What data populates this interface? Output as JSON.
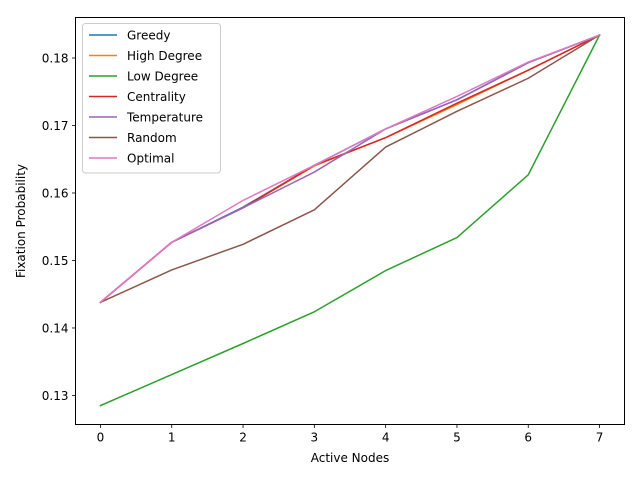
{
  "chart_data": {
    "type": "line",
    "title": "",
    "xlabel": "Active Nodes",
    "ylabel": "Fixation Probability",
    "x": [
      0,
      1,
      2,
      3,
      4,
      5,
      6,
      7
    ],
    "xlim": [
      -0.35,
      7.35
    ],
    "ylim": [
      0.1257,
      0.186
    ],
    "xticks": [
      "0",
      "1",
      "2",
      "3",
      "4",
      "5",
      "6",
      "7"
    ],
    "yticks": [
      0.13,
      0.14,
      0.15,
      0.16,
      0.17,
      0.18
    ],
    "ytick_labels": [
      "0.13",
      "0.14",
      "0.15",
      "0.16",
      "0.17",
      "0.18"
    ],
    "grid": false,
    "legend_position": "top-left",
    "series": [
      {
        "name": "Greedy",
        "color": "#1f77b4",
        "values": [
          0.1438,
          0.1527,
          0.1579,
          0.1641,
          0.1695,
          0.1738,
          0.1793,
          0.1834
        ]
      },
      {
        "name": "High Degree",
        "color": "#ff7f0e",
        "values": [
          0.1438,
          0.1527,
          0.1578,
          0.164,
          0.1682,
          0.1731,
          0.1782,
          0.1834
        ]
      },
      {
        "name": "Low Degree",
        "color": "#2ca02c",
        "values": [
          0.1285,
          0.1331,
          0.1377,
          0.1424,
          0.1485,
          0.1534,
          0.1627,
          0.1834
        ]
      },
      {
        "name": "Centrality",
        "color": "#d62728",
        "values": [
          0.1438,
          0.1527,
          0.1578,
          0.1641,
          0.1682,
          0.1733,
          0.1782,
          0.1834
        ]
      },
      {
        "name": "Temperature",
        "color": "#9467bd",
        "values": [
          0.1438,
          0.1527,
          0.1578,
          0.1631,
          0.1695,
          0.1738,
          0.1793,
          0.1834
        ]
      },
      {
        "name": "Random",
        "color": "#8c564b",
        "values": [
          0.1438,
          0.1486,
          0.1524,
          0.1575,
          0.1668,
          0.1721,
          0.177,
          0.1834
        ]
      },
      {
        "name": "Optimal",
        "color": "#e377c2",
        "values": [
          0.1438,
          0.1527,
          0.1589,
          0.1641,
          0.1695,
          0.1743,
          0.1794,
          0.1834
        ]
      }
    ]
  }
}
